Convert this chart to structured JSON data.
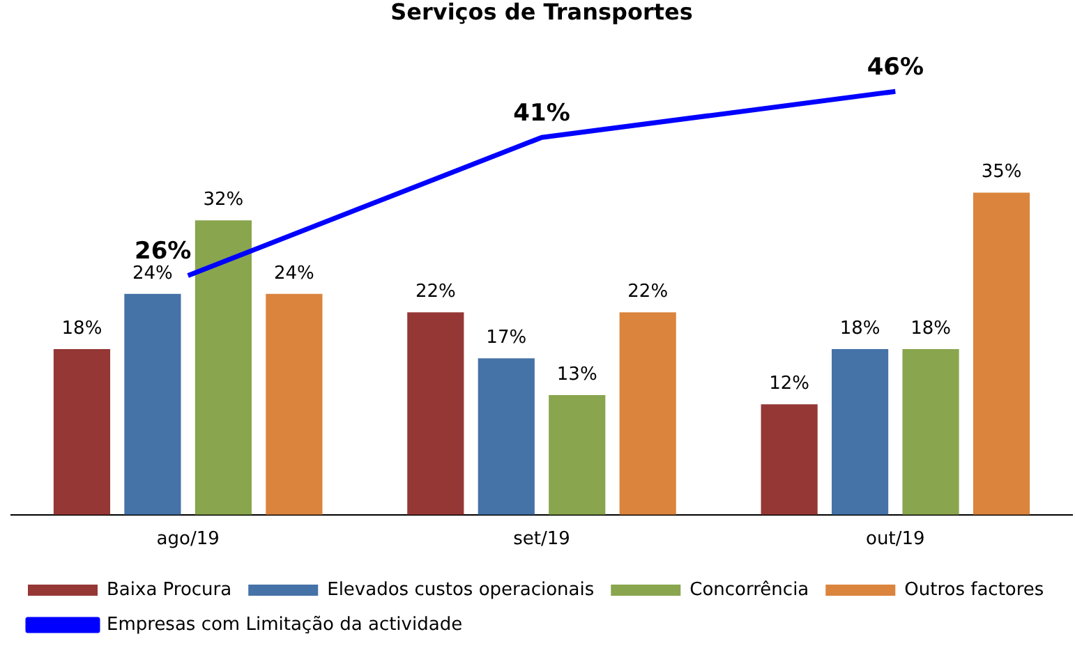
{
  "chart_data": {
    "type": "bar",
    "title": "Serviços de Transportes",
    "categories": [
      "ago/19",
      "set/19",
      "out/19"
    ],
    "series": [
      {
        "name": "Baixa Procura",
        "color": "#953735",
        "values": [
          18,
          22,
          12
        ],
        "value_labels": [
          "18%",
          "22%",
          "12%"
        ]
      },
      {
        "name": "Elevados custos operacionais",
        "color": "#4572a7",
        "values": [
          24,
          17,
          18
        ],
        "value_labels": [
          "24%",
          "17%",
          "18%"
        ]
      },
      {
        "name": "Concorrência",
        "color": "#89a54e",
        "values": [
          32,
          13,
          18
        ],
        "value_labels": [
          "32%",
          "13%",
          "18%"
        ]
      },
      {
        "name": "Outros factores",
        "color": "#db843d",
        "values": [
          24,
          22,
          35
        ],
        "value_labels": [
          "24%",
          "22%",
          "35%"
        ]
      },
      {
        "name": "Empresas com Limitação da actividade",
        "color": "#0000ff",
        "type": "line",
        "values": [
          26,
          41,
          46
        ],
        "value_labels": [
          "26%",
          "41%",
          "46%"
        ]
      }
    ],
    "grid": false,
    "legend": "bottom",
    "marker": "none"
  }
}
